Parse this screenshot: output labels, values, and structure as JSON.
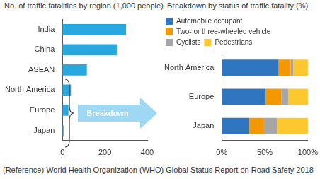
{
  "chart_data": [
    {
      "type": "bar",
      "title": "No. of traffic fatalities by region (1,000 people)",
      "orientation": "horizontal",
      "categories": [
        "India",
        "China",
        "ASEAN",
        "North America",
        "Europe",
        "Japan"
      ],
      "values": [
        300,
        256,
        115,
        40,
        28,
        5
      ],
      "color": "#29a8e0",
      "xlim": [
        0,
        400
      ],
      "xticks": [
        0,
        200,
        400
      ],
      "grid": false
    },
    {
      "type": "bar",
      "title": "Breakdown by status of traffic fatality (%)",
      "orientation": "horizontal",
      "stacked": true,
      "legend": "top",
      "categories": [
        "North America",
        "Europe",
        "Japan"
      ],
      "series": [
        {
          "name": "Automobile occupant",
          "color": "#2f75c0",
          "values": [
            66,
            51,
            32
          ]
        },
        {
          "name": "Two- or three-wheeled vehicle",
          "color": "#f39800",
          "values": [
            14,
            18,
            17
          ]
        },
        {
          "name": "Cyclists",
          "color": "#a6a6a6",
          "values": [
            3,
            8,
            15
          ]
        },
        {
          "name": "Pedestrians",
          "color": "#fdc82f",
          "values": [
            17,
            23,
            36
          ]
        }
      ],
      "xlim": [
        0,
        100
      ],
      "xticks": [
        {
          "value": 0,
          "label": "0%"
        },
        {
          "value": 50,
          "label": "50%"
        },
        {
          "value": 100,
          "label": "100%"
        }
      ],
      "grid": false
    }
  ],
  "arrow_label": "Breakdown",
  "source": "(Reference) World Health Organization (WHO) Global Status Report on Road Safety 2018"
}
